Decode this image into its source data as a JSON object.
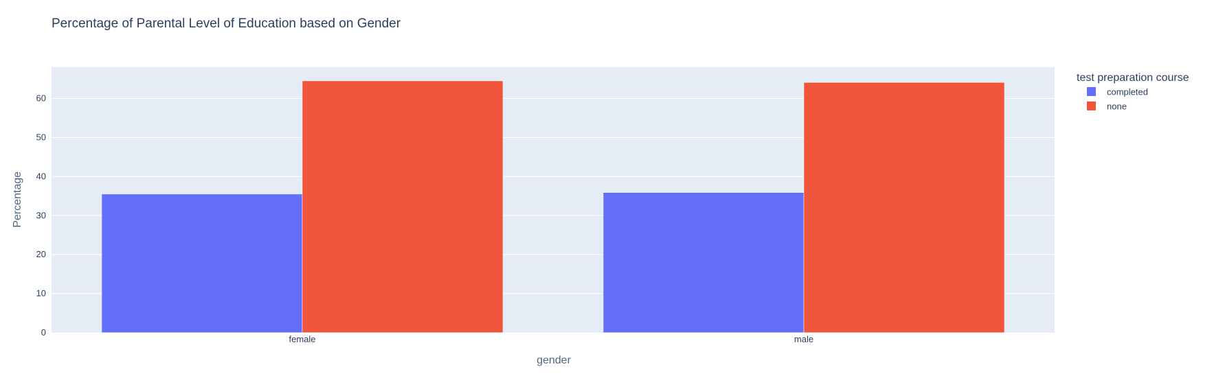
{
  "chart_data": {
    "type": "bar",
    "title": "Percentage of Parental Level of Education based on Gender",
    "xlabel": "gender",
    "ylabel": "Percentage",
    "categories": [
      "female",
      "male"
    ],
    "series": [
      {
        "name": "completed",
        "values": [
          35.5,
          35.9
        ],
        "color": "#636efa"
      },
      {
        "name": "none",
        "values": [
          64.5,
          64.1
        ],
        "color": "#ef553b"
      }
    ],
    "ylim": [
      0,
      68
    ],
    "yticks": [
      0,
      10,
      20,
      30,
      40,
      50,
      60
    ],
    "legend": {
      "title": "test preparation course",
      "position": "right"
    },
    "grid": true,
    "plot_bg": "#e5ecf6"
  }
}
